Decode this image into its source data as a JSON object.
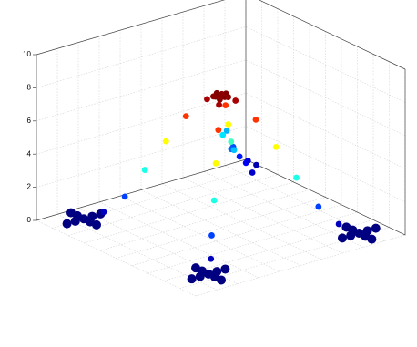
{
  "chart_data": {
    "type": "scatter3d",
    "x": [
      -0.8,
      -0.88,
      -0.96,
      -0.72,
      -0.64,
      -0.8,
      -0.8,
      -0.8,
      -0.8,
      0.7,
      0.62,
      0.54,
      0.78,
      0.86,
      0.7,
      0.7,
      0.7,
      0.7,
      0.75,
      0.67,
      0.59,
      0.83,
      0.91,
      0.75,
      0.75,
      0.75,
      0.75,
      -0.75,
      -0.83,
      -0.91,
      -0.67,
      -0.59,
      -0.75,
      -0.75,
      -0.75,
      -0.75,
      -0.68,
      -0.56,
      -0.44,
      -0.32,
      -0.2,
      -0.08,
      0.6,
      0.49,
      0.39,
      0.28,
      0.18,
      0.07,
      0.64,
      0.53,
      0.41,
      0.3,
      0.19,
      0.08,
      -0.53,
      -0.41,
      -0.3,
      -0.19,
      -0.08,
      0,
      0.05,
      -0.05,
      0,
      0,
      0.04,
      -0.04,
      0.04,
      -0.04
    ],
    "y": [
      -0.7,
      -0.7,
      -0.7,
      -0.7,
      -0.7,
      -0.78,
      -0.86,
      -0.62,
      -0.54,
      -0.65,
      -0.65,
      -0.65,
      -0.65,
      -0.65,
      -0.73,
      -0.81,
      -0.57,
      -0.49,
      0.75,
      0.75,
      0.75,
      0.75,
      0.75,
      0.67,
      0.59,
      0.83,
      0.91,
      0.75,
      0.75,
      0.75,
      0.75,
      0.75,
      0.67,
      0.59,
      0.83,
      0.91,
      -0.6,
      -0.49,
      -0.39,
      -0.28,
      -0.18,
      -0.07,
      -0.55,
      -0.46,
      -0.36,
      -0.26,
      -0.16,
      -0.07,
      0.64,
      0.53,
      0.41,
      0.3,
      0.19,
      0.08,
      0.53,
      0.41,
      0.3,
      0.19,
      0.08,
      0,
      0,
      0,
      0.05,
      -0.05,
      0.04,
      -0.04,
      -0.04,
      0.04
    ],
    "z": [
      0,
      0,
      0,
      0,
      0,
      0,
      0,
      0,
      0,
      0,
      0,
      0,
      0,
      0,
      0,
      0,
      0,
      0,
      0,
      0,
      0,
      0,
      0,
      0,
      0,
      0,
      0,
      1.2,
      1.6,
      2.4,
      1.0,
      0.6,
      1.8,
      2.8,
      0.8,
      0.4,
      0.5,
      1.5,
      3.2,
      5,
      6.6,
      7.7,
      0.5,
      1.5,
      3.2,
      5,
      6.6,
      7.7,
      0.5,
      1.5,
      3.2,
      5,
      6.6,
      7.7,
      2.5,
      3.5,
      5,
      6.6,
      7.7,
      8,
      8,
      8,
      8,
      8,
      7.9,
      7.9,
      7.9,
      7.9
    ],
    "xlim": [
      -1,
      1
    ],
    "ylim": [
      -1,
      1
    ],
    "zlim": [
      0,
      10
    ],
    "xticks": [
      -1,
      -0.8,
      -0.6,
      -0.4,
      -0.2,
      0,
      0.2,
      0.4,
      0.6,
      0.8,
      1
    ],
    "yticks": [
      -1,
      -0.8,
      -0.6,
      -0.4,
      -0.2,
      0,
      0.2,
      0.4,
      0.6,
      0.8,
      1
    ],
    "zticks": [
      0,
      2,
      4,
      6,
      8,
      10
    ],
    "grid": true,
    "colormap": "jet",
    "clim": [
      0,
      8
    ]
  }
}
